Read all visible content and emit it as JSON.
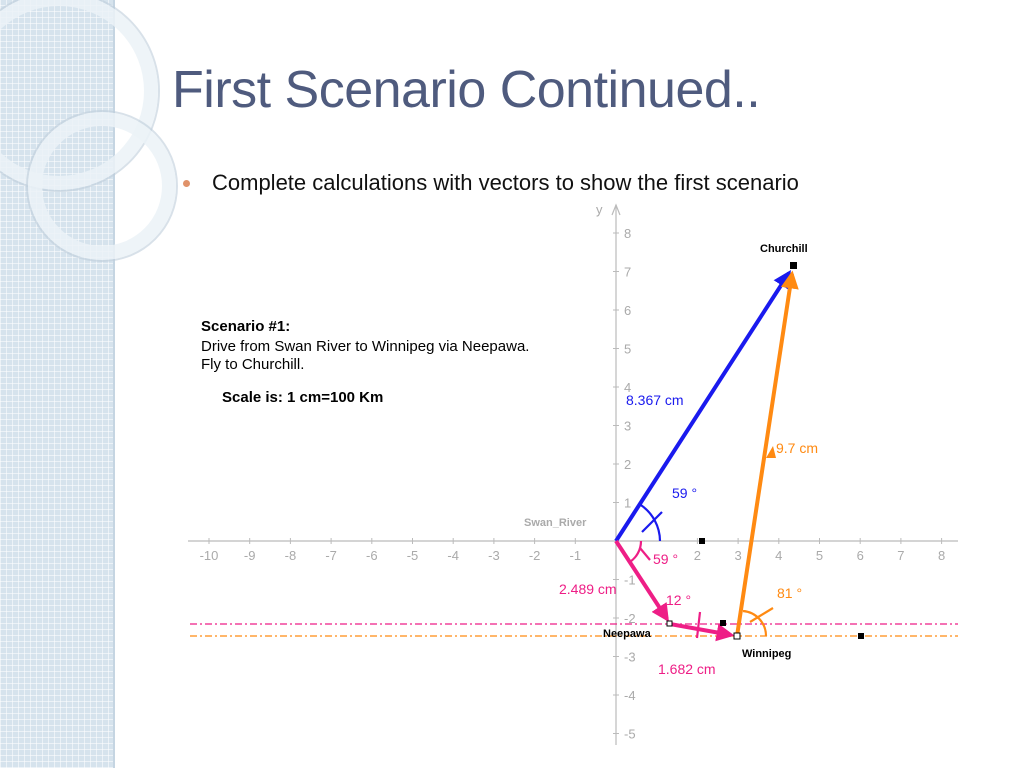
{
  "title": "First Scenario Continued..",
  "bullet": "Complete calculations with vectors to show the first scenario",
  "scenario": {
    "heading": "Scenario #1:",
    "line1": "Drive from Swan River to Winnipeg via Neepawa.",
    "line2": "Fly to Churchill.",
    "scale": "Scale is: 1 cm=100 Km"
  },
  "axes": {
    "y_label": "y",
    "x_ticks": [
      "-10",
      "-9",
      "-8",
      "-7",
      "-6",
      "-5",
      "-4",
      "-3",
      "-2",
      "-1",
      "2",
      "3",
      "4",
      "5",
      "6",
      "7",
      "8"
    ],
    "y_ticks": [
      "8",
      "7",
      "6",
      "5",
      "4",
      "3",
      "2",
      "1",
      "-1",
      "-2",
      "-3",
      "-4",
      "-5"
    ]
  },
  "places": {
    "churchill": "Churchill",
    "swan_river": "Swan_River",
    "neepawa": "Neepawa",
    "winnipeg": "Winnipeg"
  },
  "measurements": {
    "blue_length": "8.367 cm",
    "blue_angle": "59 °",
    "orange_length": "9.7 cm",
    "orange_angle": "81 °",
    "pink1_length": "2.489 cm",
    "pink1_angle": "59 °",
    "pink2_length": "1.682 cm",
    "pink2_angle": "12 °"
  },
  "colors": {
    "blue": "#1a1aee",
    "orange": "#ff8a12",
    "pink": "#ee1e86",
    "title": "#4f5b7e",
    "sidebar": "#d6e3ed"
  }
}
